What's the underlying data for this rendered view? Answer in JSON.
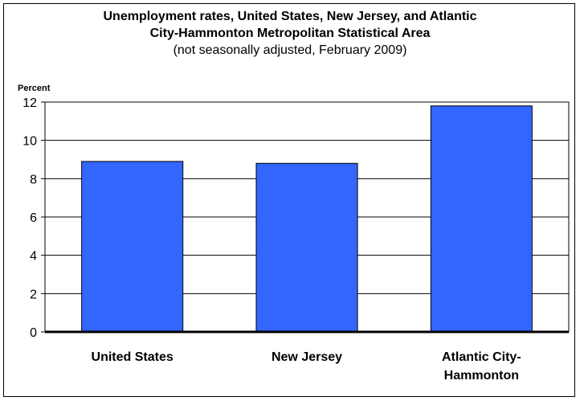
{
  "chart_data": {
    "type": "bar",
    "title_line1": "Unemployment rates, United States, New Jersey, and Atlantic",
    "title_line2": "City-Hammonton Metropolitan Statistical Area",
    "subtitle": "(not seasonally adjusted, February 2009)",
    "ylabel": "Percent",
    "xlabel": "",
    "categories": [
      [
        "United States"
      ],
      [
        "New Jersey"
      ],
      [
        "Atlantic City-",
        "Hammonton"
      ]
    ],
    "values": [
      8.9,
      8.8,
      11.8
    ],
    "ylim": [
      0,
      12
    ],
    "yticks": [
      0,
      2,
      4,
      6,
      8,
      10,
      12
    ],
    "grid": true,
    "bar_color": "#3366ff"
  }
}
